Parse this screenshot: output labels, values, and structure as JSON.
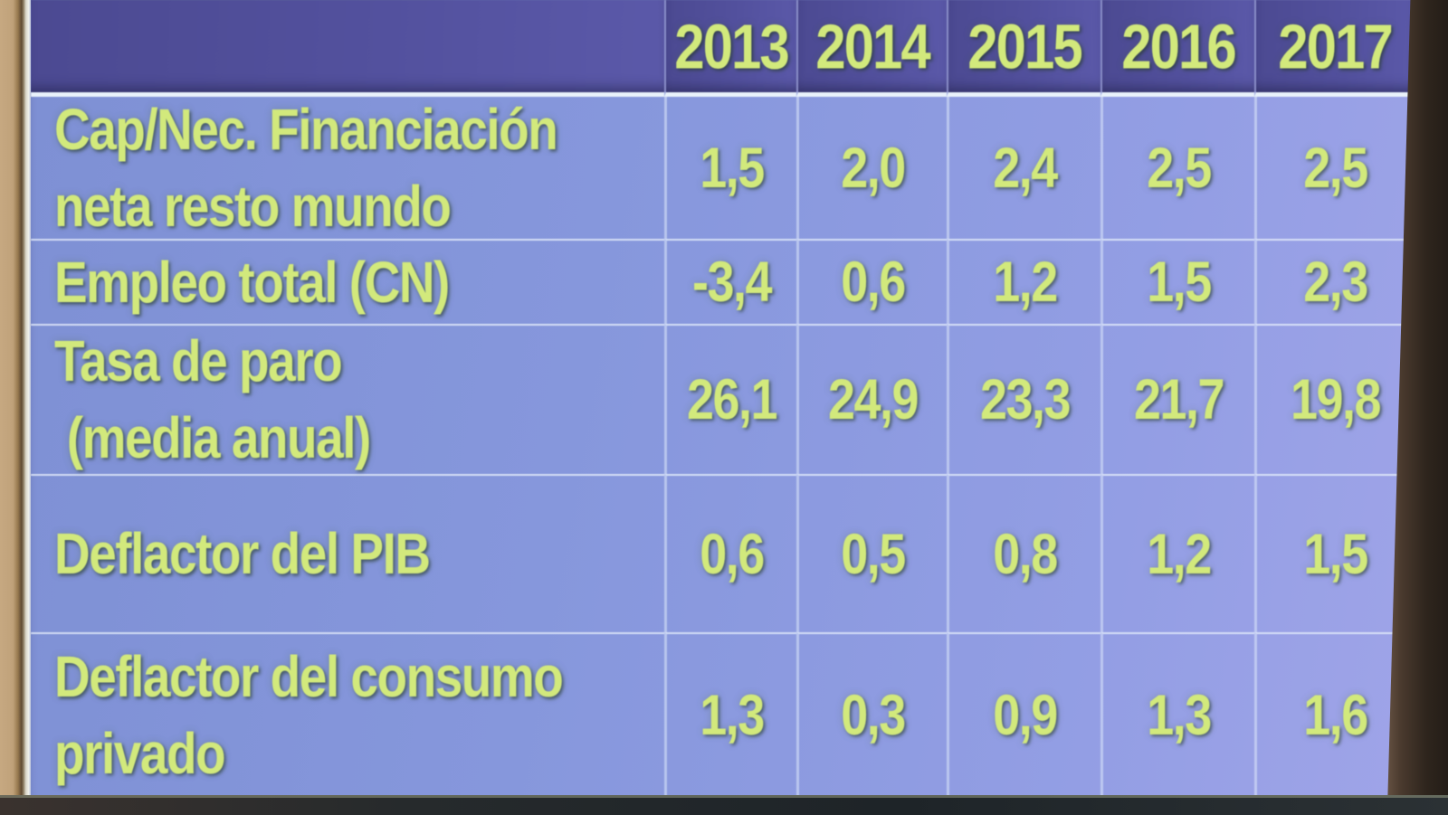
{
  "table": {
    "corner_label": "",
    "columns": [
      "2013",
      "2014",
      "2015",
      "2016",
      "2017"
    ],
    "rows": [
      {
        "label": "Cap/Nec. Financiación\nneta resto mundo",
        "values": [
          "1,5",
          "2,0",
          "2,4",
          "2,5",
          "2,5"
        ]
      },
      {
        "label": "Empleo total (CN)",
        "values": [
          "-3,4",
          "0,6",
          "1,2",
          "1,5",
          "2,3"
        ]
      },
      {
        "label": "Tasa de paro\n (media anual)",
        "values": [
          "26,1",
          "24,9",
          "23,3",
          "21,7",
          "19,8"
        ]
      },
      {
        "label": "Deflactor del PIB",
        "values": [
          "0,6",
          "0,5",
          "0,8",
          "1,2",
          "1,5"
        ]
      },
      {
        "label": "Deflactor del consumo\nprivado",
        "values": [
          "1,3",
          "0,3",
          "0,9",
          "1,3",
          "1,6"
        ]
      }
    ]
  },
  "chart_data": {
    "type": "table",
    "columns": [
      "2013",
      "2014",
      "2015",
      "2016",
      "2017"
    ],
    "rows": [
      {
        "label": "Cap/Nec. Financiación neta resto mundo",
        "values": [
          1.5,
          2.0,
          2.4,
          2.5,
          2.5
        ]
      },
      {
        "label": "Empleo total (CN)",
        "values": [
          -3.4,
          0.6,
          1.2,
          1.5,
          2.3
        ]
      },
      {
        "label": "Tasa de paro (media anual)",
        "values": [
          26.1,
          24.9,
          23.3,
          21.7,
          19.8
        ]
      },
      {
        "label": "Deflactor del PIB",
        "values": [
          0.6,
          0.5,
          0.8,
          1.2,
          1.5
        ]
      },
      {
        "label": "Deflactor del consumo privado",
        "values": [
          1.3,
          0.3,
          0.9,
          1.3,
          1.6
        ]
      }
    ],
    "number_format": "decimal-comma",
    "legend_position": "none",
    "grid": true
  },
  "colors": {
    "header_bg": "#53519e",
    "body_bg": "#8a9adf",
    "text": "#d2e97c",
    "grid_line": "#e9f2fb",
    "wall_left": "#c6a881",
    "right_edge": "#2e251d",
    "bottom_band": "#23272b"
  }
}
